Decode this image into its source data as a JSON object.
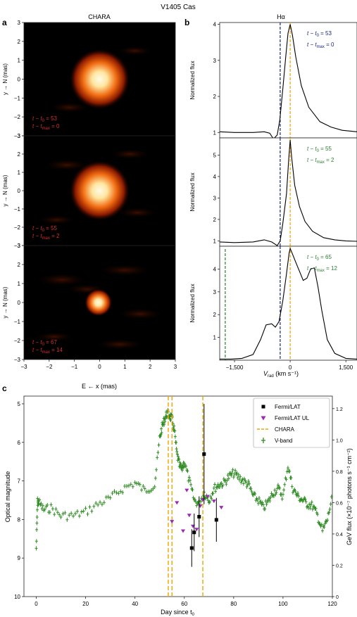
{
  "figure_title": "V1405 Cas",
  "chart_data": [
    {
      "panel": "a",
      "type": "heatmap",
      "title": "CHARA",
      "xlabel": "E ← x (mas)",
      "ylabel": "y → N (mas)",
      "x_ticks": [
        -3,
        -2,
        -1,
        0,
        1,
        2,
        3
      ],
      "y_ticks": [
        -3,
        -2,
        -1,
        0,
        1,
        2,
        3
      ],
      "xlim": [
        -3,
        3
      ],
      "ylim": [
        -3,
        3
      ],
      "subpanels": [
        {
          "label_line1": "t − t",
          "sub1": "0",
          "val1": " = 53",
          "label_line2": "t − t",
          "sub2": "max",
          "val2": " = 0",
          "blob": {
            "x": 0.0,
            "y": 0.0,
            "size": 0.55
          }
        },
        {
          "label_line1": "t − t",
          "sub1": "0",
          "val1": " = 55",
          "label_line2": "t − t",
          "sub2": "max",
          "val2": " = 2",
          "blob": {
            "x": 0.0,
            "y": 0.0,
            "size": 0.55
          }
        },
        {
          "label_line1": "t − t",
          "sub1": "0",
          "val1": " = 67",
          "label_line2": "t − t",
          "sub2": "max",
          "val2": " = 14",
          "blob": {
            "x": -0.05,
            "y": 0.0,
            "size": 0.25
          }
        }
      ]
    },
    {
      "panel": "b",
      "type": "line",
      "title": "Hα",
      "xlabel": "V",
      "xlabel_sub": "rad",
      "xlabel_unit": " (km s⁻¹)",
      "ylabel": "Normalized flux",
      "xlim": [
        -1900,
        1800
      ],
      "x_ticks": [
        -1500,
        0,
        1500
      ],
      "x_tick_labels": [
        "−1,500",
        "0",
        "1,500"
      ],
      "vlines": [
        {
          "x": -270,
          "color": "#1a237e"
        },
        {
          "x": 0,
          "color": "#f0a500"
        }
      ],
      "subpanels": [
        {
          "ylim": [
            0.85,
            4.05
          ],
          "y_ticks": [
            1,
            2,
            3,
            4
          ],
          "label_line1": "t − t",
          "sub1": "0",
          "val1": " = 53",
          "label_line2": "t − t",
          "sub2": "max",
          "val2": " = 0",
          "label_color": "#1a237e",
          "x": [
            -1900,
            -1500,
            -1000,
            -700,
            -550,
            -450,
            -350,
            -280,
            -200,
            -120,
            -60,
            0,
            60,
            150,
            300,
            500,
            800,
            1100,
            1400,
            1800
          ],
          "y": [
            1.02,
            1.0,
            1.0,
            1.02,
            0.98,
            0.82,
            0.93,
            1.35,
            2.2,
            3.1,
            3.75,
            4.0,
            3.7,
            3.1,
            2.3,
            1.7,
            1.3,
            1.15,
            1.06,
            1.02
          ]
        },
        {
          "ylim": [
            0.75,
            5.8
          ],
          "y_ticks": [
            1,
            2,
            3,
            4,
            5
          ],
          "label_line1": "t − t",
          "sub1": "0",
          "val1": " = 55",
          "label_line2": "t − t",
          "sub2": "max",
          "val2": " = 2",
          "label_color": "#2e7d32",
          "x": [
            -1900,
            -1500,
            -1000,
            -700,
            -500,
            -350,
            -270,
            -200,
            -100,
            -40,
            0,
            40,
            120,
            250,
            400,
            600,
            900,
            1200,
            1500,
            1800
          ],
          "y": [
            0.95,
            0.92,
            0.95,
            1.05,
            0.95,
            0.78,
            1.0,
            1.8,
            3.2,
            4.8,
            5.7,
            4.9,
            3.6,
            2.6,
            1.9,
            1.45,
            1.15,
            1.05,
            1.0,
            0.98
          ]
        },
        {
          "ylim": [
            0,
            5.0
          ],
          "y_ticks": [
            1,
            2,
            3,
            4
          ],
          "label_line1": "t − t",
          "sub1": "0",
          "val1": " = 65",
          "label_line2": "t − t",
          "sub2": "max",
          "val2": " = 12",
          "label_color": "#2e7d32",
          "extra_vline": {
            "x": -1750,
            "color": "#2e7d32"
          },
          "x": [
            -1900,
            -1600,
            -1300,
            -1000,
            -800,
            -650,
            -500,
            -400,
            -300,
            -200,
            -100,
            -30,
            0,
            50,
            150,
            250,
            350,
            450,
            550,
            650,
            750,
            850,
            1000,
            1200,
            1500,
            1800
          ],
          "y": [
            0.05,
            0.05,
            0.08,
            0.25,
            0.9,
            1.55,
            1.6,
            1.45,
            1.7,
            2.6,
            3.8,
            4.7,
            4.9,
            4.7,
            4.3,
            3.9,
            3.5,
            3.6,
            4.0,
            4.05,
            3.2,
            2.2,
            0.9,
            0.3,
            0.08,
            0.05
          ]
        }
      ]
    },
    {
      "panel": "c",
      "type": "scatter",
      "xlabel": "Day since t",
      "xlabel_sub": "0",
      "ylabel": "Optical magnitude",
      "y2label": "GeV flux (×10⁻⁷ photons s⁻¹ cm⁻²)",
      "xlim": [
        -5,
        120
      ],
      "ylim": [
        10,
        4.8
      ],
      "y2lim": [
        0,
        1.28
      ],
      "x_ticks": [
        0,
        20,
        40,
        60,
        80,
        100,
        120
      ],
      "y_ticks": [
        5,
        6,
        7,
        8,
        9,
        10
      ],
      "y2_ticks": [
        0,
        0.2,
        0.4,
        0.6,
        0.8,
        1.0,
        1.2
      ],
      "y2_tick_labels": [
        "0",
        "0.2",
        "0.4",
        "0.6",
        "0.8",
        "1.0",
        "1.2"
      ],
      "legend_position": "top-right",
      "legend": [
        {
          "label": "Fermi/LAT",
          "marker": "square",
          "color": "#000000"
        },
        {
          "label": "Fermi/LAT UL",
          "marker": "triangle-down",
          "color": "#9c27b0"
        },
        {
          "label": "CHARA",
          "marker": "dashed-line",
          "color": "#f0a500"
        },
        {
          "label": "V-band",
          "marker": "cross",
          "color": "#2e8b22"
        }
      ],
      "chara_days": [
        53.5,
        55,
        67.5
      ],
      "vband_curve": {
        "x": [
          0,
          0.5,
          1,
          3,
          6,
          10,
          15,
          20,
          25,
          30,
          35,
          40,
          44,
          48,
          50,
          51,
          52,
          53,
          54,
          55,
          56,
          57,
          58,
          59,
          60,
          62,
          64,
          66,
          68,
          70,
          72,
          74,
          76,
          78,
          80,
          82,
          84,
          86,
          88,
          90,
          92,
          94,
          96,
          98,
          100,
          102,
          104,
          106,
          108,
          110,
          112,
          114,
          116,
          118,
          120
        ],
        "y": [
          8.75,
          7.55,
          7.55,
          7.75,
          7.7,
          7.9,
          7.9,
          7.8,
          7.6,
          7.45,
          7.2,
          7.05,
          7.25,
          7.1,
          5.9,
          5.6,
          5.4,
          5.25,
          5.3,
          5.4,
          5.7,
          6.3,
          6.6,
          6.7,
          6.5,
          7.0,
          7.5,
          7.6,
          7.3,
          7.5,
          7.2,
          7.1,
          7.05,
          6.9,
          6.8,
          6.9,
          7.0,
          7.1,
          7.4,
          7.5,
          7.7,
          7.55,
          7.3,
          7.2,
          7.4,
          6.6,
          7.2,
          7.4,
          7.5,
          7.6,
          7.65,
          7.9,
          8.3,
          8.0,
          7.4
        ]
      },
      "fermi_lat": [
        {
          "x": 63.0,
          "y": 0.31,
          "err": 0.12
        },
        {
          "x": 64.0,
          "y": 0.41,
          "err": 0.12
        },
        {
          "x": 66.0,
          "y": 0.51,
          "err": 0.13
        },
        {
          "x": 68.0,
          "y": 0.91,
          "err": 0.32
        },
        {
          "x": 73.0,
          "y": 0.49,
          "err": 0.14
        }
      ],
      "fermi_ul": [
        {
          "x": 55.0,
          "y": 0.48
        },
        {
          "x": 57.0,
          "y": 0.6
        },
        {
          "x": 59.5,
          "y": 0.42
        },
        {
          "x": 61.0,
          "y": 0.68
        },
        {
          "x": 62.0,
          "y": 0.52
        },
        {
          "x": 63.5,
          "y": 0.45
        },
        {
          "x": 65.0,
          "y": 0.43
        },
        {
          "x": 66.5,
          "y": 0.58
        },
        {
          "x": 67.5,
          "y": 0.62
        },
        {
          "x": 69.5,
          "y": 0.64
        },
        {
          "x": 72.0,
          "y": 0.61
        },
        {
          "x": 75.0,
          "y": 0.57
        }
      ]
    }
  ],
  "panel_letters": [
    "a",
    "b",
    "c"
  ]
}
